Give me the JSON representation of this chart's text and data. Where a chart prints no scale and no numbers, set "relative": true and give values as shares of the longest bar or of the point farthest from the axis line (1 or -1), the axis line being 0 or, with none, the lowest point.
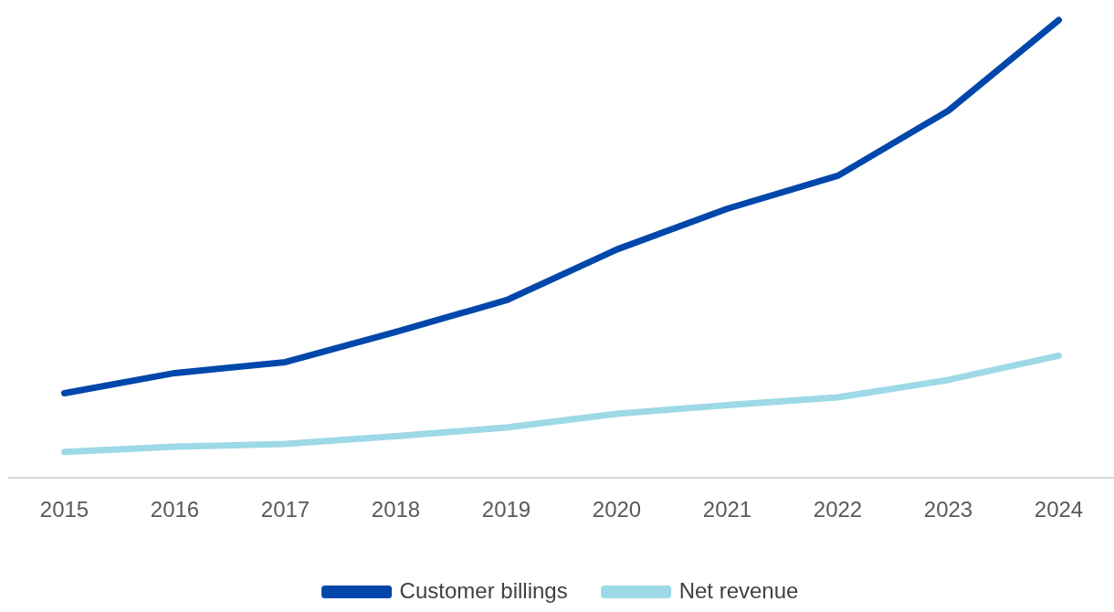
{
  "chart_data": {
    "type": "line",
    "relative": true,
    "categories": [
      "2015",
      "2016",
      "2017",
      "2018",
      "2019",
      "2020",
      "2021",
      "2022",
      "2023",
      "2024"
    ],
    "series": [
      {
        "name": "Customer billings",
        "color": "#0047ab",
        "values": [
          0.185,
          0.229,
          0.253,
          0.319,
          0.388,
          0.499,
          0.588,
          0.66,
          0.802,
          1
        ]
      },
      {
        "name": "Net revenue",
        "color": "#9dd9e6",
        "values": [
          0.057,
          0.068,
          0.074,
          0.091,
          0.11,
          0.14,
          0.159,
          0.176,
          0.214,
          0.267
        ]
      }
    ],
    "legend": "bottom",
    "grid": false,
    "marker": "none"
  }
}
